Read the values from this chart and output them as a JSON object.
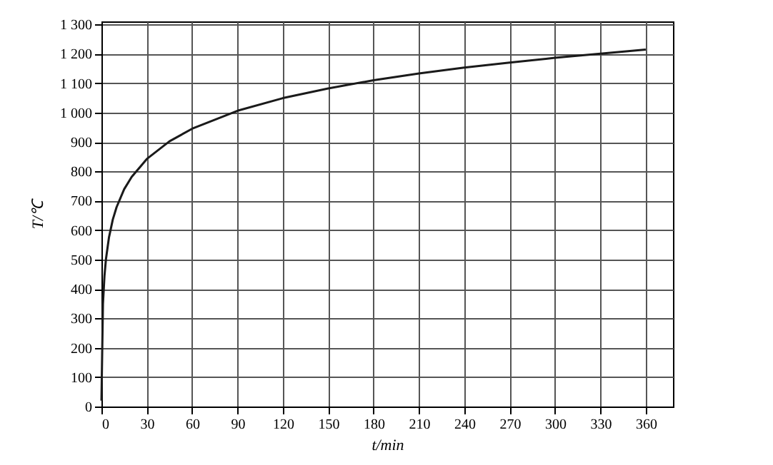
{
  "chart_data": {
    "type": "line",
    "xlabel": "t/min",
    "ylabel": "T/℃",
    "x": [
      0,
      1,
      2,
      3,
      5,
      7.5,
      10,
      15,
      20,
      30,
      45,
      60,
      90,
      120,
      150,
      180,
      210,
      240,
      270,
      300,
      330,
      360
    ],
    "series": [
      {
        "color": "#1a1a1a",
        "values": [
          20,
          349,
          444,
          502,
          576,
          636,
          678,
          739,
          781,
          842,
          902,
          945,
          1006,
          1049,
          1082,
          1110,
          1133,
          1153,
          1170,
          1186,
          1200,
          1214
        ]
      }
    ],
    "xlim": [
      0,
      378
    ],
    "xticks": [
      0,
      30,
      60,
      90,
      120,
      150,
      180,
      210,
      240,
      270,
      300,
      330,
      360
    ],
    "ylim": [
      0,
      1310
    ],
    "yticks": [
      0,
      100,
      200,
      300,
      400,
      500,
      600,
      700,
      800,
      900,
      {
        "value": 1000,
        "label": "1 000"
      },
      {
        "value": 1100,
        "label": "1 100"
      },
      {
        "value": 1200,
        "label": "1 200"
      },
      {
        "value": 1300,
        "label": "1 300"
      }
    ],
    "grid": true,
    "marker": "none",
    "line_style": "solid"
  }
}
